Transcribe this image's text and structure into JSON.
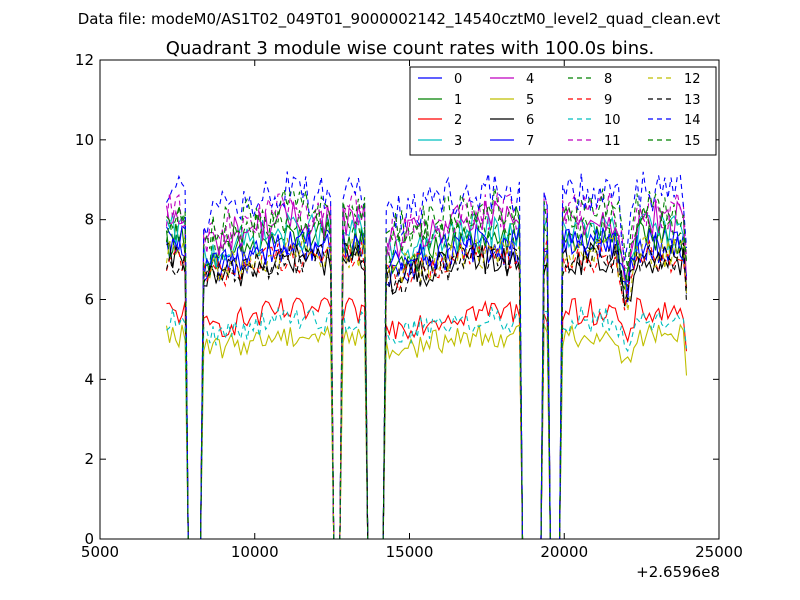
{
  "chart_data": {
    "type": "line",
    "suptitle": "Data file: modeM0/AS1T02_049T01_9000002142_14540cztM0_level2_quad_clean.evt",
    "title": "Quadrant 3 module wise count rates with 100.0s bins.",
    "xlabel": "",
    "ylabel": "",
    "x_offset_label": "+2.6596e8",
    "xlim": [
      5000,
      25000
    ],
    "ylim": [
      0,
      12
    ],
    "x_ticks": [
      5000,
      10000,
      15000,
      20000,
      25000
    ],
    "y_ticks": [
      0,
      2,
      4,
      6,
      8,
      10,
      12
    ],
    "legend_position": "top-right",
    "legend_columns": 4,
    "good_time_intervals": [
      [
        7150,
        7800
      ],
      [
        8300,
        12450
      ],
      [
        12850,
        13550
      ],
      [
        14200,
        18600
      ],
      [
        19350,
        19450
      ],
      [
        19950,
        23950
      ]
    ],
    "series": [
      {
        "name": "0",
        "color": "#0000ff",
        "dash": "solid",
        "level": 7.3
      },
      {
        "name": "1",
        "color": "#008000",
        "dash": "solid",
        "level": 7.5
      },
      {
        "name": "2",
        "color": "#ff0000",
        "dash": "solid",
        "level": 5.7
      },
      {
        "name": "3",
        "color": "#00bfbf",
        "dash": "solid",
        "level": 7.7
      },
      {
        "name": "4",
        "color": "#bf00bf",
        "dash": "solid",
        "level": 8.0
      },
      {
        "name": "5",
        "color": "#bfbf00",
        "dash": "solid",
        "level": 5.1
      },
      {
        "name": "6",
        "color": "#000000",
        "dash": "solid",
        "level": 7.0
      },
      {
        "name": "7",
        "color": "#0000ff",
        "dash": "solid",
        "level": 7.4
      },
      {
        "name": "8",
        "color": "#008000",
        "dash": "dashed",
        "level": 7.9
      },
      {
        "name": "9",
        "color": "#ff0000",
        "dash": "dashed",
        "level": 7.1
      },
      {
        "name": "10",
        "color": "#00bfbf",
        "dash": "dashed",
        "level": 5.5
      },
      {
        "name": "11",
        "color": "#bf00bf",
        "dash": "dashed",
        "level": 8.2
      },
      {
        "name": "12",
        "color": "#bfbf00",
        "dash": "dashed",
        "level": 7.2
      },
      {
        "name": "13",
        "color": "#000000",
        "dash": "dashed",
        "level": 7.0
      },
      {
        "name": "14",
        "color": "#0000ff",
        "dash": "dashed",
        "level": 8.7
      },
      {
        "name": "15",
        "color": "#008000",
        "dash": "dashed",
        "level": 8.3
      }
    ]
  }
}
